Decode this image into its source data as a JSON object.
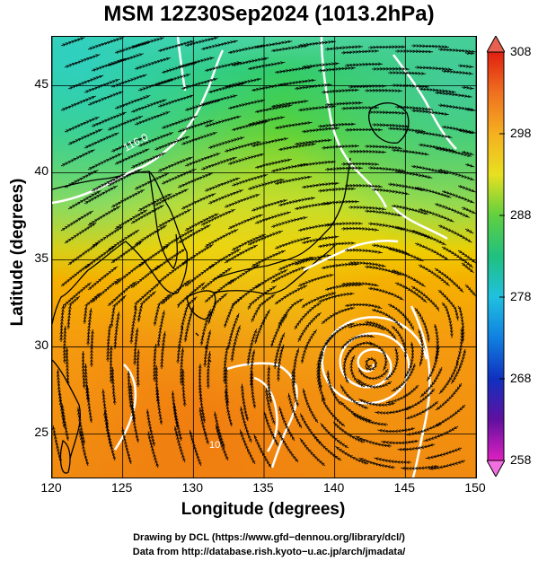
{
  "title": "MSM 12Z30Sep2024 (1013.2hPa)",
  "axes": {
    "xlabel": "Longitude (degrees)",
    "ylabel": "Latitude  (degrees)",
    "xticks": [
      "120",
      "125",
      "130",
      "135",
      "140",
      "145",
      "150"
    ],
    "yticks": [
      "45",
      "40",
      "35",
      "30",
      "25"
    ],
    "xlim": [
      120,
      150
    ],
    "ylim": [
      22.5,
      47.8
    ]
  },
  "colorbar": {
    "ticks": [
      "308",
      "298",
      "288",
      "278",
      "268",
      "258"
    ],
    "range": [
      258,
      308
    ]
  },
  "contour_label": "116.0",
  "contour_label_2": "10",
  "typhoon_center": {
    "lon": 142.5,
    "lat": 29.0
  },
  "footer": {
    "line1": "Drawing by DCL (https://www.gfd−dennou.org/library/dcl/)",
    "line2": "Data from http://database.rish.kyoto−u.ac.jp/arch/jmadata/"
  }
}
